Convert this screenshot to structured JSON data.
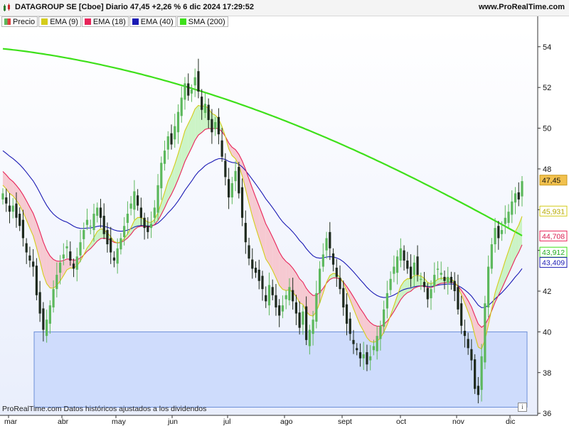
{
  "header": {
    "title": "DATAGROUP SE [Cboe] Diario 47,45 +2,26 % 6 dic 2024 17:29:52",
    "brand": "www.ProRealTime.com"
  },
  "legend": [
    {
      "label": "Precio",
      "color": "#5cb85c"
    },
    {
      "label": "EMA (9)",
      "color": "#d4cc1a"
    },
    {
      "label": "EMA (18)",
      "color": "#e8245a"
    },
    {
      "label": "EMA (40)",
      "color": "#1a1ab4"
    },
    {
      "label": "SMA (200)",
      "color": "#3ee01a"
    }
  ],
  "footer": {
    "text": "ProRealTime.com  Datos históricos ajustados a los dividendos",
    "info_icon": "i"
  },
  "chart_data": {
    "type": "candlestick",
    "x_labels": [
      "mar",
      "abr",
      "may",
      "jun",
      "jul",
      "ago",
      "sept",
      "oct",
      "nov",
      "dic"
    ],
    "y_ticks": [
      36,
      38,
      40,
      42,
      44,
      46,
      48,
      50,
      52,
      54
    ],
    "y_tick_labels": [
      "36",
      "38",
      "40",
      "42",
      "",
      "",
      "48",
      "50",
      "52",
      "54"
    ],
    "ylim": [
      35.9,
      54.9
    ],
    "grid": false,
    "colors": {
      "up": "#5cb85c",
      "down": "#1e2a1e",
      "ema9": "#d4cc1a",
      "ema18": "#e8245a",
      "ema40": "#1a1ab4",
      "sma200": "#3ee01a",
      "box_fill": "#c9d8fb",
      "box_stroke": "#6c8fd8",
      "fill_bull": "#c6f3c0",
      "fill_bear": "#f6c4cc"
    },
    "candles_close": [
      46.8,
      46.3,
      45.9,
      46.2,
      45.6,
      45.2,
      44.6,
      43.9,
      43.5,
      43.2,
      41.8,
      40.9,
      40.1,
      40.6,
      41.3,
      42.1,
      42.8,
      43.4,
      43.8,
      44.2,
      43.5,
      43.1,
      43.7,
      44.4,
      45.0,
      45.5,
      45.2,
      45.8,
      46.1,
      45.6,
      44.8,
      44.3,
      43.9,
      43.5,
      44.1,
      44.6,
      45.2,
      45.8,
      46.3,
      46.9,
      46.2,
      45.6,
      45.1,
      44.9,
      45.3,
      46.1,
      47.2,
      48.3,
      48.9,
      49.6,
      49.2,
      50.1,
      50.8,
      51.5,
      52.2,
      51.6,
      51.9,
      52.5,
      51.8,
      50.9,
      51.2,
      50.4,
      49.8,
      50.3,
      49.7,
      48.6,
      47.6,
      46.6,
      47.3,
      47.9,
      46.8,
      45.6,
      44.4,
      43.6,
      43.1,
      42.9,
      42.5,
      42.1,
      41.5,
      42.3,
      41.8,
      41.2,
      40.8,
      41.3,
      41.8,
      42.2,
      41.5,
      40.9,
      40.2,
      41.0,
      39.6,
      40.1,
      40.6,
      41.9,
      43.1,
      43.8,
      44.6,
      44.1,
      43.3,
      42.7,
      42.1,
      41.2,
      40.4,
      39.9,
      39.4,
      39.1,
      38.7,
      38.9,
      38.4,
      38.8,
      39.3,
      39.8,
      40.3,
      41.1,
      41.9,
      42.6,
      43.2,
      43.7,
      44.1,
      43.5,
      43.1,
      42.6,
      43.4,
      42.8,
      42.6,
      42.2,
      41.6,
      42.1,
      42.8,
      43.1,
      42.9,
      42.5,
      42.7,
      42.4,
      42.0,
      41.1,
      40.3,
      39.8,
      39.2,
      38.6,
      37.2,
      36.9,
      38.8,
      41.4,
      43.2,
      44.3,
      45.1,
      44.6,
      45.0,
      45.6,
      45.9,
      46.4,
      46.8,
      46.5,
      47.4
    ],
    "ema9_end": "45,931",
    "ema18_end": "44,708",
    "ema40_end": "43,409",
    "sma200_end": "43,912",
    "last_price": "47,45",
    "box": {
      "top": 40.0,
      "bottom": 36.3
    }
  }
}
